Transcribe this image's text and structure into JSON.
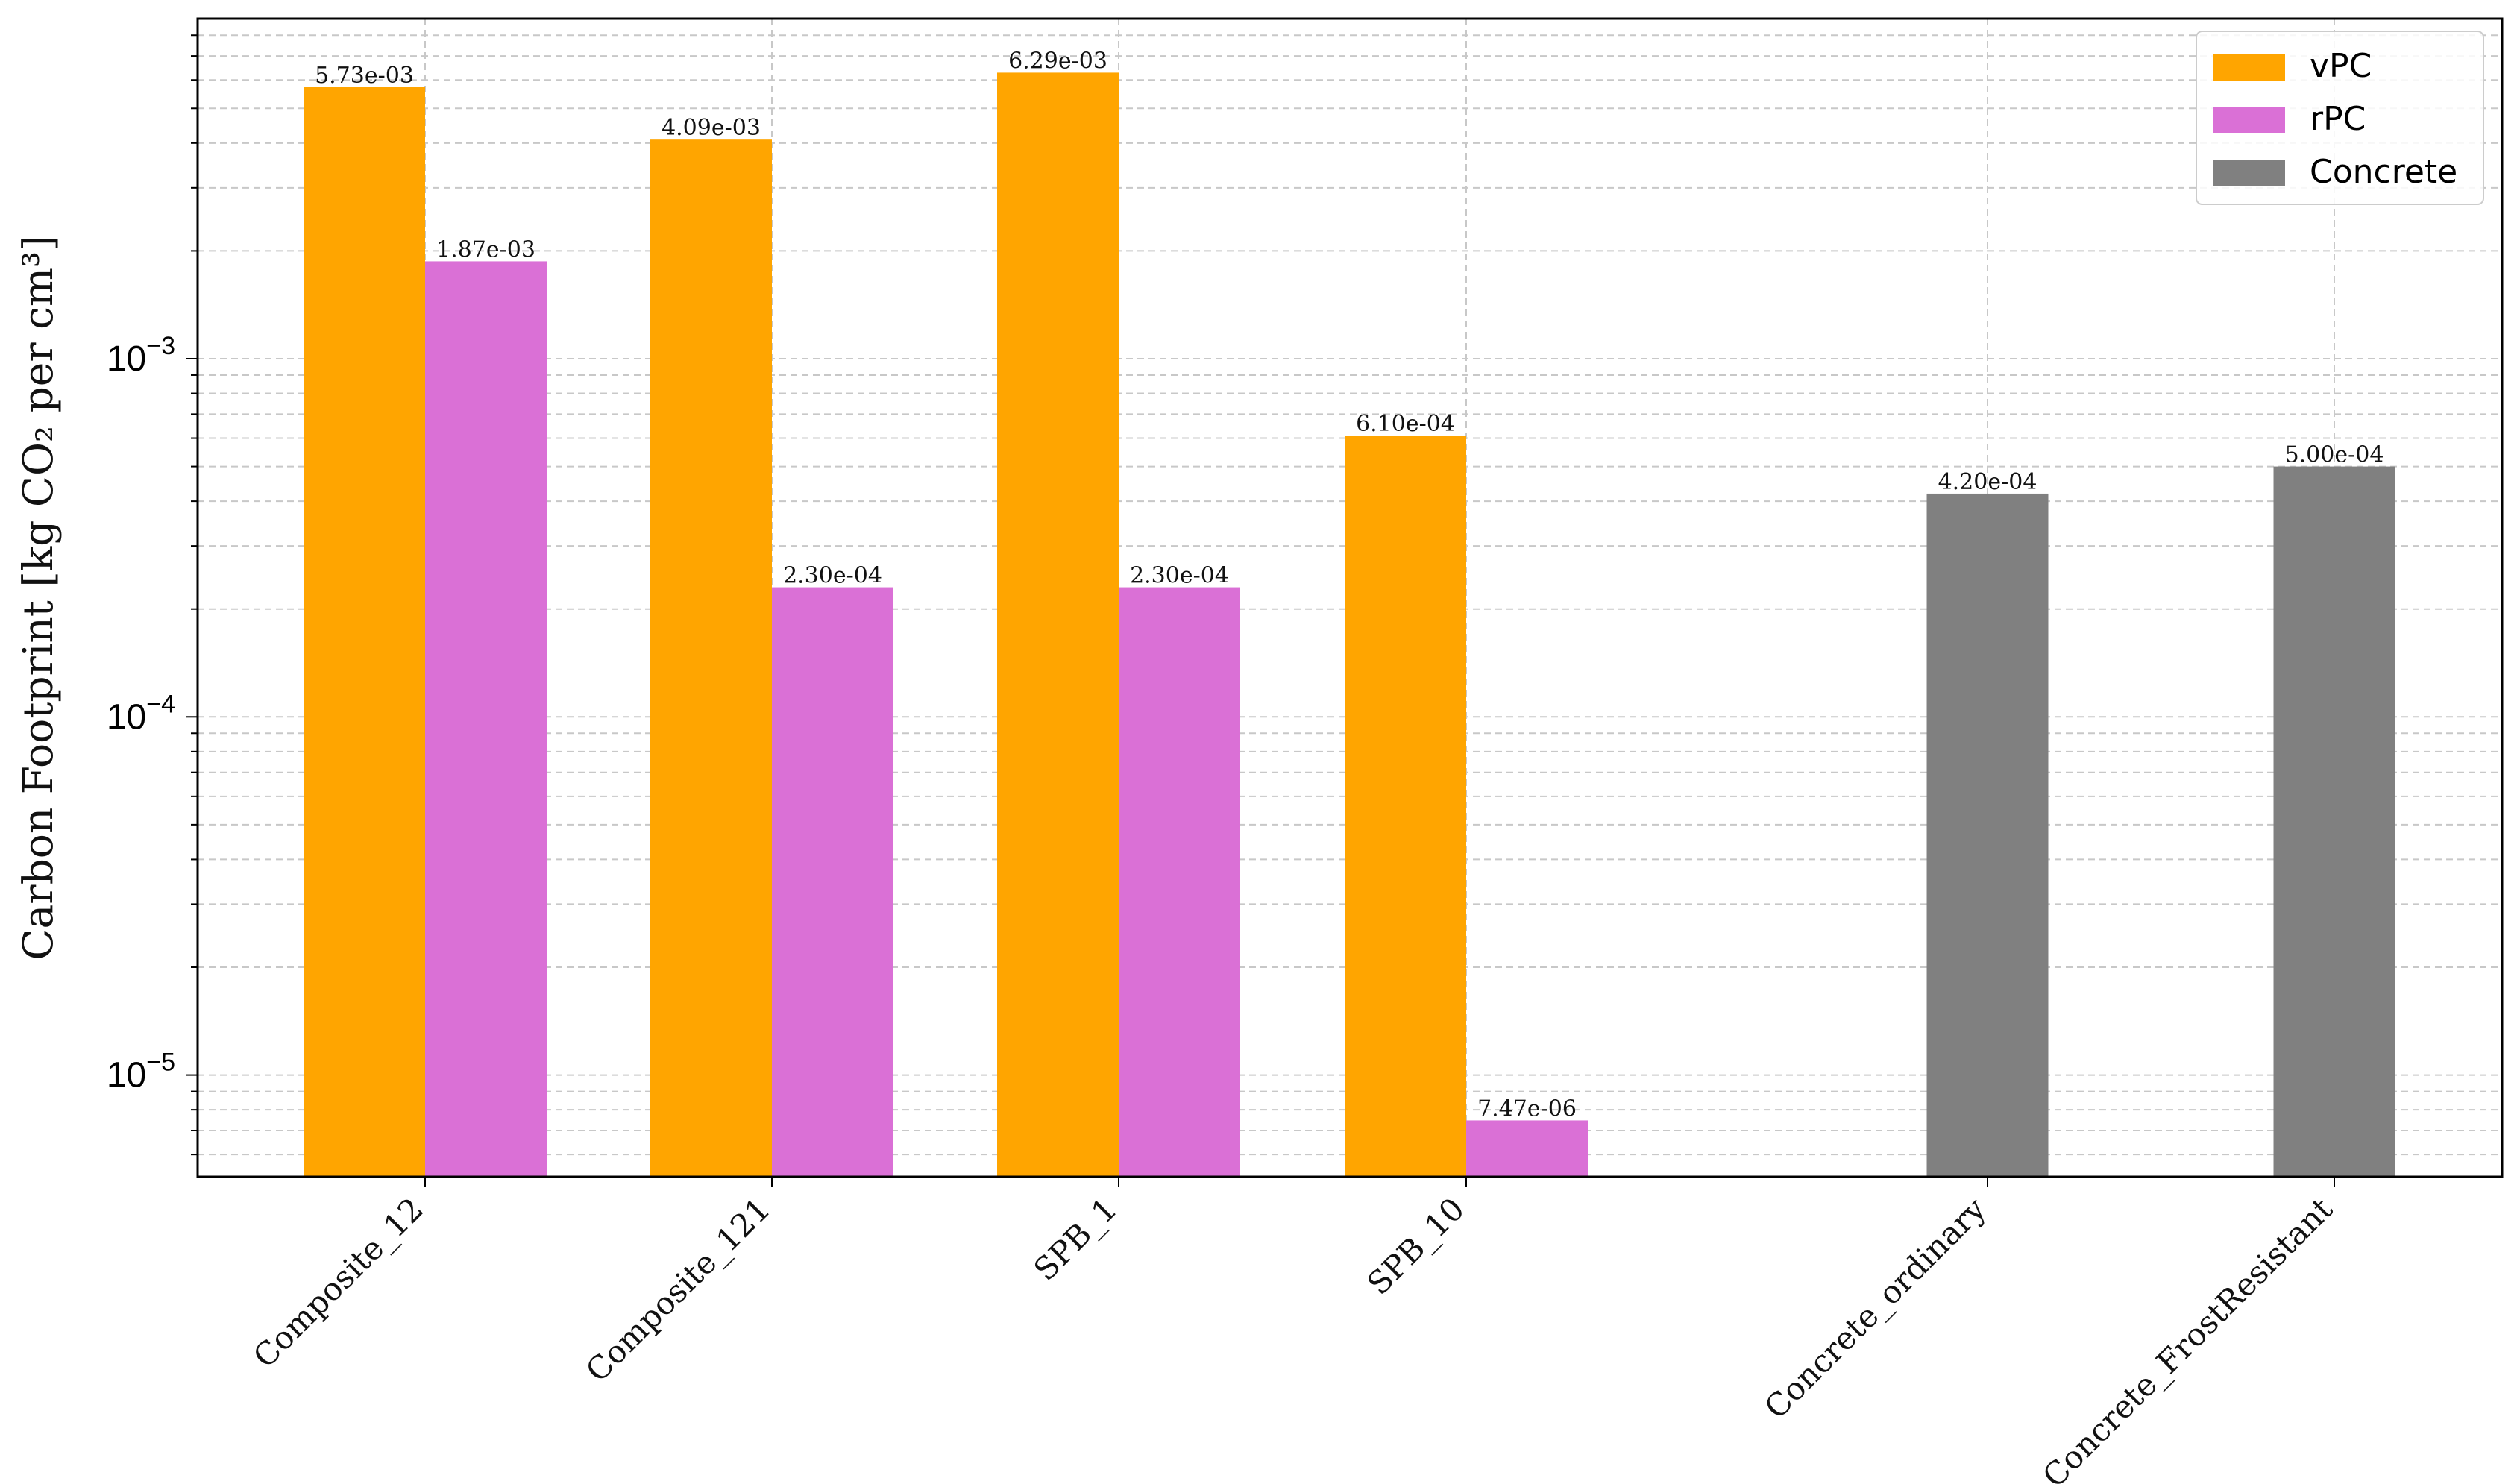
{
  "chart_data": {
    "type": "bar",
    "ylabel": "Carbon Footprint [kg CO₂ per cm³]",
    "xlabel": "",
    "title": "",
    "yscale": "log",
    "ylim": [
      5.2e-06,
      0.0089
    ],
    "grid": true,
    "legend_position": "top-right",
    "categories": [
      "Composite_12",
      "Composite_121",
      "SPB_1",
      "SPB_10",
      "Concrete_ordinary",
      "Concrete_FrostResistant"
    ],
    "series": [
      {
        "name": "vPC",
        "color": "#FFA500",
        "values": [
          0.00573,
          0.00409,
          0.00629,
          0.00061,
          null,
          null
        ],
        "labels": [
          "5.73e-03",
          "4.09e-03",
          "6.29e-03",
          "6.10e-04",
          "",
          ""
        ]
      },
      {
        "name": "rPC",
        "color": "#DA70D6",
        "values": [
          0.00187,
          0.00023,
          0.00023,
          7.47e-06,
          null,
          null
        ],
        "labels": [
          "1.87e-03",
          "2.30e-04",
          "2.30e-04",
          "7.47e-06",
          "",
          ""
        ]
      },
      {
        "name": "Concrete",
        "color": "#808080",
        "values": [
          null,
          null,
          null,
          null,
          0.00042,
          0.0005
        ],
        "labels": [
          "",
          "",
          "",
          "",
          "4.20e-04",
          "5.00e-04"
        ]
      }
    ],
    "yticks": [
      {
        "value": 1e-05,
        "base": "10",
        "exp": "−5"
      },
      {
        "value": 0.0001,
        "base": "10",
        "exp": "−4"
      },
      {
        "value": 0.001,
        "base": "10",
        "exp": "−3"
      }
    ]
  }
}
